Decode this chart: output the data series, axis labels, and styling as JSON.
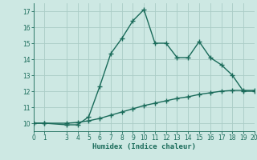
{
  "xlabel": "Humidex (Indice chaleur)",
  "background_color": "#cde8e3",
  "grid_color": "#aaccc6",
  "line_color": "#1a6b5a",
  "line1_x": [
    0,
    1,
    3,
    4,
    5,
    6,
    7,
    8,
    9,
    10,
    11,
    12,
    13,
    14,
    15,
    16,
    17,
    18,
    19,
    20
  ],
  "line1_y": [
    10.0,
    10.0,
    9.9,
    9.9,
    10.4,
    12.3,
    14.35,
    15.3,
    16.4,
    17.1,
    15.0,
    15.0,
    14.1,
    14.1,
    15.1,
    14.1,
    13.65,
    13.0,
    12.0,
    12.0
  ],
  "line2_x": [
    0,
    1,
    3,
    4,
    5,
    6,
    7,
    8,
    9,
    10,
    11,
    12,
    13,
    14,
    15,
    16,
    17,
    18,
    19,
    20
  ],
  "line2_y": [
    10.0,
    10.0,
    10.0,
    10.05,
    10.15,
    10.3,
    10.5,
    10.7,
    10.9,
    11.1,
    11.25,
    11.4,
    11.55,
    11.65,
    11.8,
    11.9,
    12.0,
    12.05,
    12.05,
    12.05
  ],
  "xlim": [
    0,
    20
  ],
  "ylim": [
    9.5,
    17.5
  ],
  "yticks": [
    10,
    11,
    12,
    13,
    14,
    15,
    16,
    17
  ],
  "xticks": [
    0,
    1,
    3,
    4,
    5,
    6,
    7,
    8,
    9,
    10,
    11,
    12,
    13,
    14,
    15,
    16,
    17,
    18,
    19,
    20
  ],
  "marker": "+",
  "marker_size": 4,
  "linewidth": 1.0
}
